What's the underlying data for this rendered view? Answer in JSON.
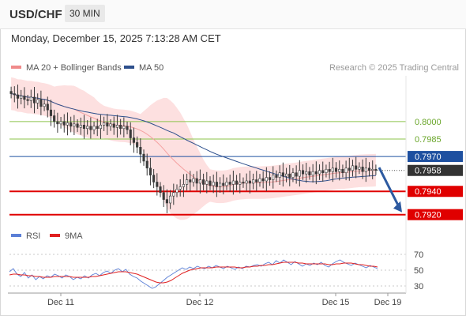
{
  "header": {
    "symbol": "USD/CHF",
    "timeframe": "30 MIN",
    "datetime": "Monday, December 15, 2025 7:13:28 AM CET",
    "research": "Research © 2025 Trading Central"
  },
  "legends": {
    "price": [
      {
        "label": "MA 20 + Bollinger Bands",
        "color": "#f08a8a"
      },
      {
        "label": "MA 50",
        "color": "#2d4f8c"
      }
    ],
    "rsi": [
      {
        "label": "RSI",
        "color": "#5b7fd6"
      },
      {
        "label": "9MA",
        "color": "#e02020"
      }
    ]
  },
  "colors": {
    "up_candle": "#ffffff",
    "down_candle": "#3a3a3a",
    "candle_outline": "#3a3a3a",
    "band_fill": "#fde0e0",
    "ma20": "#f5a0a0",
    "ma50": "#2d4f8c",
    "resistance": "#8bc34a",
    "pivot": "#1e50a0",
    "support": "#e00000",
    "arrow": "#2d5aa0",
    "price_tag": "#333333"
  },
  "chart_data": {
    "type": "candlestick",
    "price_axis_range": [
      0.7913,
      0.804
    ],
    "x_ticks": [
      "Dec 11",
      "Dec 12",
      "Dec 15",
      "Dec 19"
    ],
    "current_price": 0.7958,
    "levels": [
      {
        "label": "0.8000",
        "value": 0.8,
        "kind": "resistance"
      },
      {
        "label": "0.7985",
        "value": 0.7985,
        "kind": "resistance"
      },
      {
        "label": "0.7970",
        "value": 0.797,
        "kind": "pivot"
      },
      {
        "label": "0.7940",
        "value": 0.794,
        "kind": "support"
      },
      {
        "label": "0.7920",
        "value": 0.792,
        "kind": "support"
      }
    ],
    "closes": [
      0.8024,
      0.8023,
      0.802,
      0.8022,
      0.8019,
      0.8018,
      0.8021,
      0.8016,
      0.8019,
      0.8013,
      0.8015,
      0.801,
      0.8005,
      0.8,
      0.7998,
      0.8,
      0.7997,
      0.7999,
      0.7996,
      0.7998,
      0.7995,
      0.7997,
      0.7994,
      0.7996,
      0.7993,
      0.7996,
      0.7994,
      0.7997,
      0.7999,
      0.7996,
      0.7998,
      0.7995,
      0.7997,
      0.7994,
      0.7996,
      0.7993,
      0.7986,
      0.7982,
      0.7978,
      0.7972,
      0.7966,
      0.796,
      0.7954,
      0.7948,
      0.7944,
      0.7939,
      0.7933,
      0.793,
      0.7936,
      0.7939,
      0.7942,
      0.7944,
      0.7946,
      0.795,
      0.7948,
      0.7951,
      0.7947,
      0.795,
      0.7946,
      0.7949,
      0.7945,
      0.7948,
      0.7944,
      0.7947,
      0.7945,
      0.7948,
      0.7946,
      0.7949,
      0.7946,
      0.7948,
      0.7947,
      0.7949,
      0.7947,
      0.795,
      0.7948,
      0.7951,
      0.7949,
      0.7952,
      0.795,
      0.7954,
      0.7952,
      0.7956,
      0.7953,
      0.7955,
      0.7952,
      0.7956,
      0.7953,
      0.7958,
      0.7955,
      0.7957,
      0.7954,
      0.7957,
      0.7955,
      0.7958,
      0.7956,
      0.7959,
      0.7957,
      0.796,
      0.7957,
      0.7959,
      0.7956,
      0.796,
      0.7958,
      0.7962,
      0.7959,
      0.7961,
      0.7957,
      0.796,
      0.7958,
      0.7959,
      0.7958
    ],
    "rsi": {
      "axis_range": [
        20,
        80
      ],
      "ticks": [
        70,
        50,
        30
      ],
      "rsi_values": [
        48,
        52,
        45,
        42,
        47,
        40,
        44,
        38,
        42,
        39,
        43,
        41,
        45,
        43,
        40,
        44,
        42,
        38,
        41,
        39,
        43,
        40,
        44,
        46,
        43,
        47,
        49,
        46,
        50,
        52,
        48,
        51,
        45,
        42,
        40,
        36,
        33,
        30,
        27,
        29,
        33,
        37,
        41,
        44,
        47,
        50,
        53,
        51,
        54,
        52,
        55,
        53,
        52,
        55,
        53,
        56,
        54,
        52,
        55,
        53,
        51,
        54,
        52,
        55,
        54,
        56,
        57,
        55,
        58,
        60,
        57,
        62,
        59,
        63,
        60,
        57,
        61,
        58,
        55,
        58,
        56,
        59,
        57,
        60,
        56,
        54,
        58,
        61,
        63,
        60,
        58,
        56,
        59,
        57,
        55,
        53,
        56,
        54,
        52
      ],
      "ma_values": [
        44,
        45,
        45,
        44,
        44,
        43,
        43,
        42,
        42,
        41,
        41,
        41,
        42,
        42,
        42,
        42,
        42,
        41,
        41,
        41,
        41,
        41,
        42,
        42,
        43,
        44,
        45,
        46,
        47,
        48,
        48,
        48,
        47,
        46,
        45,
        43,
        41,
        39,
        37,
        35,
        34,
        34,
        35,
        37,
        40,
        43,
        46,
        48,
        50,
        51,
        52,
        53,
        53,
        53,
        53,
        54,
        54,
        54,
        54,
        54,
        54,
        53,
        53,
        54,
        54,
        55,
        55,
        56,
        56,
        57,
        57,
        58,
        59,
        60,
        60,
        60,
        60,
        59,
        59,
        58,
        58,
        58,
        58,
        58,
        58,
        57,
        57,
        58,
        58,
        59,
        59,
        59,
        58,
        57,
        57,
        56,
        55,
        55,
        54
      ]
    }
  }
}
